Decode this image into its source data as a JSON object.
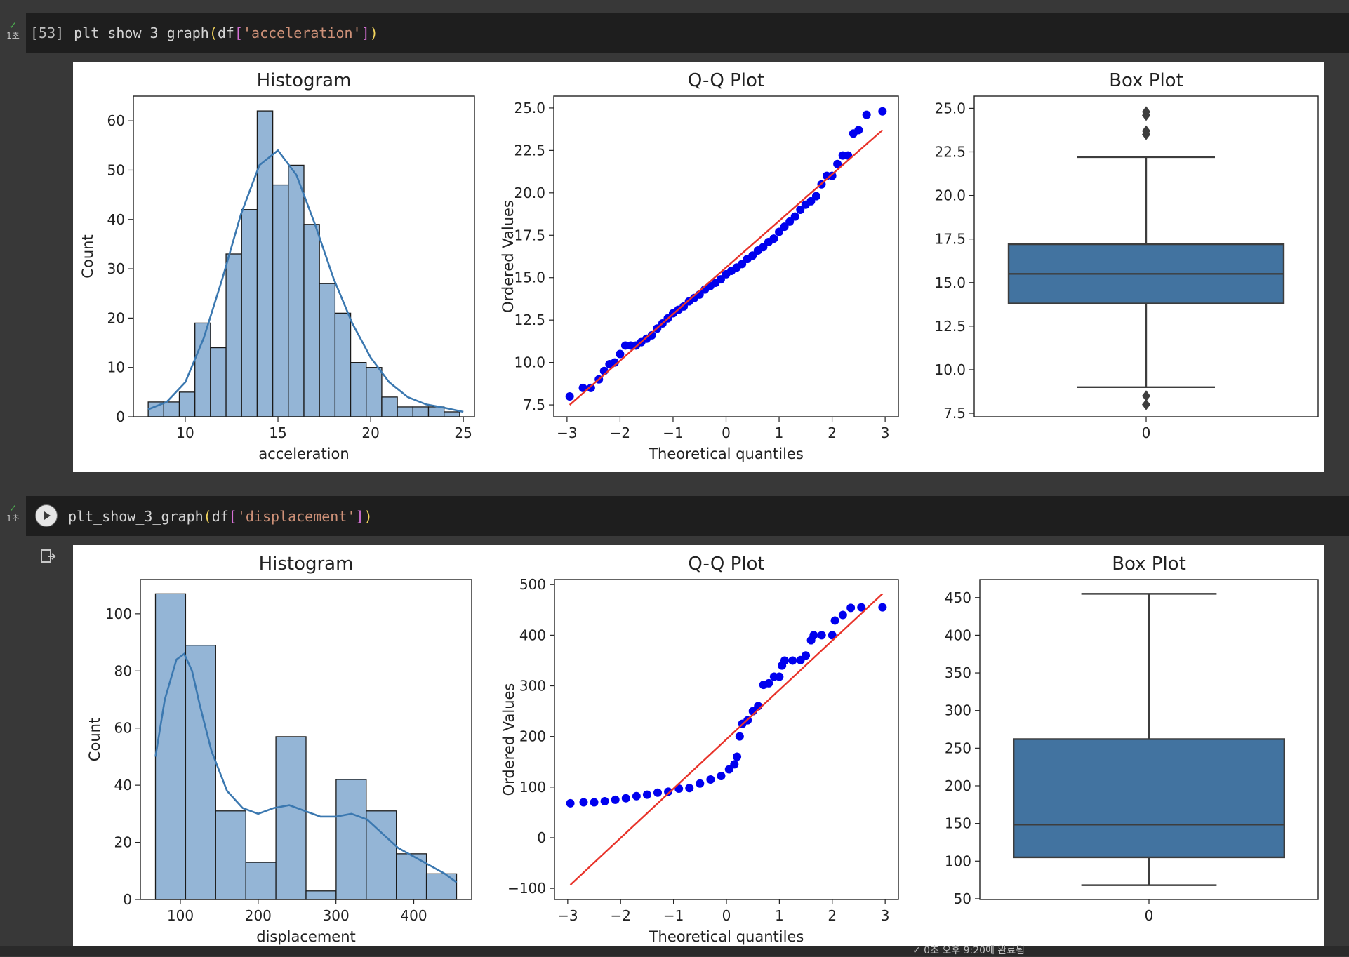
{
  "cells": [
    {
      "prompt": "[53]",
      "code": {
        "fn": "plt_show_3_graph",
        "obj": "df",
        "col": "'acceleration'"
      },
      "status": {
        "check": "✓",
        "time": "1초"
      }
    },
    {
      "prompt": "",
      "code": {
        "fn": "plt_show_3_graph",
        "obj": "df",
        "col": "'displacement'"
      },
      "status": {
        "check": "✓",
        "time": "1초"
      }
    }
  ],
  "chart_data": [
    {
      "type": "bar",
      "title": "Histogram",
      "xlabel": "acceleration",
      "ylabel": "Count",
      "bin_edges": [
        8.0,
        8.84,
        9.68,
        10.52,
        11.36,
        12.2,
        13.04,
        13.88,
        14.72,
        15.56,
        16.4,
        17.24,
        18.08,
        18.92,
        19.76,
        20.6,
        21.44,
        22.28,
        23.12,
        23.96,
        24.8
      ],
      "values": [
        3,
        3,
        5,
        19,
        14,
        33,
        42,
        62,
        47,
        51,
        39,
        27,
        21,
        11,
        10,
        4,
        2,
        2,
        2,
        1
      ],
      "kde": [
        [
          8,
          1.5
        ],
        [
          9,
          3
        ],
        [
          10,
          7
        ],
        [
          11,
          16
        ],
        [
          12,
          28
        ],
        [
          13,
          41
        ],
        [
          14,
          51
        ],
        [
          15,
          54
        ],
        [
          16,
          49
        ],
        [
          17,
          39
        ],
        [
          18,
          28
        ],
        [
          19,
          19
        ],
        [
          20,
          12
        ],
        [
          21,
          7
        ],
        [
          22,
          4
        ],
        [
          23,
          2.5
        ],
        [
          24,
          1.8
        ],
        [
          25,
          1
        ]
      ],
      "xticks": [
        "10",
        "15",
        "20",
        "25"
      ],
      "yticks": [
        "0",
        "10",
        "20",
        "30",
        "40",
        "50",
        "60"
      ],
      "xlim": [
        7.2,
        25.6
      ],
      "ylim": [
        0,
        65
      ]
    },
    {
      "type": "scatter",
      "title": "Q-Q Plot",
      "xlabel": "Theoretical quantiles",
      "ylabel": "Ordered Values",
      "fit_line": [
        [
          -2.95,
          7.5
        ],
        [
          2.95,
          23.7
        ]
      ],
      "points": [
        [
          -2.95,
          8.0
        ],
        [
          -2.7,
          8.5
        ],
        [
          -2.55,
          8.5
        ],
        [
          -2.4,
          9.0
        ],
        [
          -2.3,
          9.5
        ],
        [
          -2.2,
          9.9
        ],
        [
          -2.1,
          10.0
        ],
        [
          -2.0,
          10.5
        ],
        [
          -1.9,
          11.0
        ],
        [
          -1.8,
          11.0
        ],
        [
          -1.7,
          11.0
        ],
        [
          -1.6,
          11.2
        ],
        [
          -1.5,
          11.4
        ],
        [
          -1.4,
          11.6
        ],
        [
          -1.3,
          12.0
        ],
        [
          -1.2,
          12.3
        ],
        [
          -1.1,
          12.6
        ],
        [
          -1.0,
          12.9
        ],
        [
          -0.9,
          13.1
        ],
        [
          -0.8,
          13.3
        ],
        [
          -0.7,
          13.6
        ],
        [
          -0.6,
          13.8
        ],
        [
          -0.5,
          14.0
        ],
        [
          -0.4,
          14.3
        ],
        [
          -0.3,
          14.5
        ],
        [
          -0.2,
          14.7
        ],
        [
          -0.1,
          14.9
        ],
        [
          0.0,
          15.2
        ],
        [
          0.1,
          15.4
        ],
        [
          0.2,
          15.6
        ],
        [
          0.3,
          15.8
        ],
        [
          0.4,
          16.1
        ],
        [
          0.5,
          16.3
        ],
        [
          0.6,
          16.6
        ],
        [
          0.7,
          16.8
        ],
        [
          0.8,
          17.1
        ],
        [
          0.9,
          17.3
        ],
        [
          1.0,
          17.7
        ],
        [
          1.1,
          18.0
        ],
        [
          1.2,
          18.3
        ],
        [
          1.3,
          18.6
        ],
        [
          1.4,
          19.0
        ],
        [
          1.5,
          19.3
        ],
        [
          1.6,
          19.5
        ],
        [
          1.7,
          19.8
        ],
        [
          1.8,
          20.5
        ],
        [
          1.9,
          21.0
        ],
        [
          2.0,
          21.0
        ],
        [
          2.1,
          21.7
        ],
        [
          2.2,
          22.2
        ],
        [
          2.3,
          22.2
        ],
        [
          2.4,
          23.5
        ],
        [
          2.5,
          23.7
        ],
        [
          2.65,
          24.6
        ],
        [
          2.95,
          24.8
        ]
      ],
      "xticks": [
        "−3",
        "−2",
        "−1",
        "0",
        "1",
        "2",
        "3"
      ],
      "yticks": [
        "7.5",
        "10.0",
        "12.5",
        "15.0",
        "17.5",
        "20.0",
        "22.5",
        "25.0"
      ],
      "xlim": [
        -3.25,
        3.25
      ],
      "ylim": [
        6.8,
        25.7
      ]
    },
    {
      "type": "box",
      "title": "Box Plot",
      "xticks": [
        "0"
      ],
      "yticks": [
        "7.5",
        "10.0",
        "12.5",
        "15.0",
        "17.5",
        "20.0",
        "22.5",
        "25.0"
      ],
      "whisker_low": 9.0,
      "q1": 13.8,
      "median": 15.5,
      "q3": 17.2,
      "whisker_high": 22.2,
      "outliers": [
        8.0,
        8.5,
        23.5,
        23.7,
        24.6,
        24.8
      ],
      "ylim": [
        7.3,
        25.7
      ]
    },
    {
      "type": "bar",
      "title": "Histogram",
      "xlabel": "displacement",
      "ylabel": "Count",
      "bin_edges": [
        68,
        106.7,
        145.4,
        184.1,
        222.8,
        261.5,
        300.2,
        338.9,
        377.6,
        416.3,
        455
      ],
      "values": [
        107,
        89,
        31,
        13,
        57,
        3,
        42,
        31,
        16,
        9
      ],
      "kde": [
        [
          68,
          50
        ],
        [
          80,
          70
        ],
        [
          95,
          84
        ],
        [
          105,
          86
        ],
        [
          115,
          80
        ],
        [
          125,
          68
        ],
        [
          140,
          52
        ],
        [
          160,
          38
        ],
        [
          180,
          32
        ],
        [
          200,
          30
        ],
        [
          220,
          32
        ],
        [
          240,
          33
        ],
        [
          260,
          31
        ],
        [
          280,
          29
        ],
        [
          300,
          29
        ],
        [
          320,
          30
        ],
        [
          340,
          28
        ],
        [
          360,
          23
        ],
        [
          380,
          18
        ],
        [
          400,
          15
        ],
        [
          420,
          12
        ],
        [
          440,
          9
        ],
        [
          455,
          6
        ]
      ],
      "xticks": [
        "100",
        "200",
        "300",
        "400"
      ],
      "yticks": [
        "0",
        "20",
        "40",
        "60",
        "80",
        "100"
      ],
      "xlim": [
        48.6,
        474.4
      ],
      "ylim": [
        0,
        112
      ]
    },
    {
      "type": "scatter",
      "title": "Q-Q Plot",
      "xlabel": "Theoretical quantiles",
      "ylabel": "Ordered Values",
      "fit_line": [
        [
          -2.95,
          -93
        ],
        [
          2.95,
          482
        ]
      ],
      "points": [
        [
          -2.95,
          68
        ],
        [
          -2.7,
          70
        ],
        [
          -2.5,
          70
        ],
        [
          -2.3,
          72
        ],
        [
          -2.1,
          75
        ],
        [
          -1.9,
          78
        ],
        [
          -1.7,
          82
        ],
        [
          -1.5,
          85
        ],
        [
          -1.3,
          89
        ],
        [
          -1.1,
          91
        ],
        [
          -0.9,
          97
        ],
        [
          -0.7,
          98
        ],
        [
          -0.5,
          107
        ],
        [
          -0.3,
          115
        ],
        [
          -0.1,
          122
        ],
        [
          0.05,
          135
        ],
        [
          0.15,
          145
        ],
        [
          0.2,
          160
        ],
        [
          0.25,
          200
        ],
        [
          0.3,
          225
        ],
        [
          0.4,
          232
        ],
        [
          0.5,
          250
        ],
        [
          0.6,
          260
        ],
        [
          0.7,
          302
        ],
        [
          0.8,
          305
        ],
        [
          0.9,
          318
        ],
        [
          1.0,
          318
        ],
        [
          1.05,
          340
        ],
        [
          1.1,
          350
        ],
        [
          1.25,
          350
        ],
        [
          1.4,
          351
        ],
        [
          1.5,
          360
        ],
        [
          1.6,
          390
        ],
        [
          1.65,
          400
        ],
        [
          1.8,
          400
        ],
        [
          2.0,
          400
        ],
        [
          2.05,
          429
        ],
        [
          2.2,
          440
        ],
        [
          2.35,
          454
        ],
        [
          2.55,
          455
        ],
        [
          2.95,
          455
        ]
      ],
      "xticks": [
        "−3",
        "−2",
        "−1",
        "0",
        "1",
        "2",
        "3"
      ],
      "yticks": [
        "−100",
        "0",
        "100",
        "200",
        "300",
        "400",
        "500"
      ],
      "xlim": [
        -3.25,
        3.25
      ],
      "ylim": [
        -122,
        510
      ]
    },
    {
      "type": "box",
      "title": "Box Plot",
      "xticks": [
        "0"
      ],
      "yticks": [
        "50",
        "100",
        "150",
        "200",
        "250",
        "300",
        "350",
        "400",
        "450"
      ],
      "whisker_low": 68,
      "q1": 105,
      "median": 148.5,
      "q3": 262,
      "whisker_high": 455,
      "outliers": [],
      "ylim": [
        49,
        474
      ]
    }
  ],
  "footer": {
    "text": "✓ 0초   오후 9:20에 완료됨"
  }
}
